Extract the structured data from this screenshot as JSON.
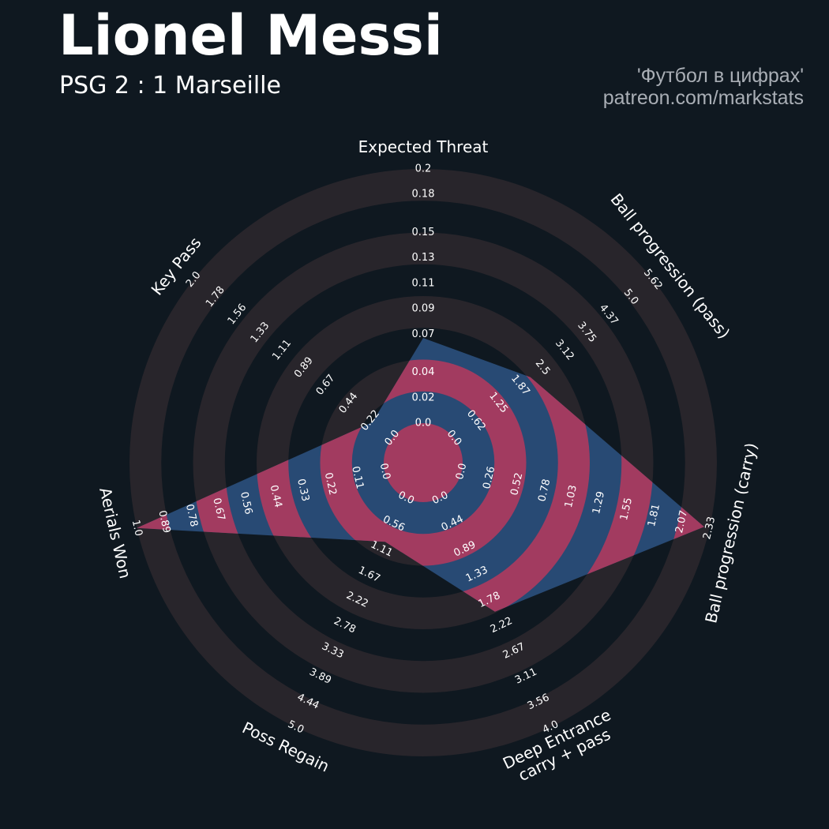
{
  "chart_data": {
    "type": "radar",
    "title": "Lionel Messi",
    "subtitle": "PSG 2 : 1 Marseille",
    "credits": [
      "'Футбол в цифрах'",
      "patreon.com/markstats"
    ],
    "color": "#284a74",
    "ring_color": "#28252b",
    "highlight_color": "#a23b60",
    "axes": [
      {
        "name": "Expected Threat",
        "lim": [
          0,
          0.2
        ],
        "ticks": [
          {
            "value": 0,
            "label": "0.0"
          },
          0.02,
          0.04,
          0.07,
          0.09,
          0.11,
          0.13,
          0.15,
          0.18,
          0.2
        ]
      },
      {
        "name": "Ball progression (pass)",
        "lim": [
          0,
          5.62
        ],
        "ticks": [
          {
            "value": 0,
            "label": "0.0"
          },
          0.62,
          1.25,
          1.87,
          2.5,
          3.12,
          3.75,
          4.37,
          {
            "value": 5,
            "label": "5.0"
          },
          5.62
        ]
      },
      {
        "name": "Ball progression (carry)",
        "lim": [
          0,
          2.33
        ],
        "ticks": [
          {
            "value": 0,
            "label": "0.0"
          },
          0.26,
          0.52,
          0.78,
          1.03,
          1.29,
          1.55,
          1.81,
          2.07,
          2.33
        ]
      },
      {
        "name": "Deep Entrance\ncarry + pass",
        "lim": [
          0,
          4
        ],
        "ticks": [
          {
            "value": 0,
            "label": "0.0"
          },
          0.44,
          0.89,
          1.33,
          1.78,
          2.22,
          2.67,
          3.11,
          3.56,
          {
            "value": 4,
            "label": "4.0"
          }
        ]
      },
      {
        "name": "Poss Regain",
        "lim": [
          0,
          5
        ],
        "ticks": [
          {
            "value": 0,
            "label": "0.0"
          },
          0.56,
          1.11,
          1.67,
          2.22,
          2.78,
          3.33,
          3.89,
          4.44,
          {
            "value": 5,
            "label": "5.0"
          }
        ]
      },
      {
        "name": "Aerials Won",
        "lim": [
          0,
          1
        ],
        "ticks": [
          {
            "value": 0,
            "label": "0.0"
          },
          0.11,
          0.22,
          0.33,
          0.44,
          0.56,
          0.67,
          0.78,
          0.89,
          {
            "value": 1,
            "label": "1.0"
          }
        ]
      },
      {
        "name": "Key Pass",
        "lim": [
          0,
          2
        ],
        "ticks": [
          {
            "value": 0,
            "label": "0.0"
          },
          0.22,
          0.44,
          0.67,
          0.89,
          1.11,
          1.33,
          1.56,
          1.78,
          {
            "value": 2,
            "label": "2.0"
          }
        ]
      }
    ],
    "values": [
      0.067,
      2.16,
      2.28,
      1.98,
      0.95,
      1.0,
      0.2
    ]
  }
}
